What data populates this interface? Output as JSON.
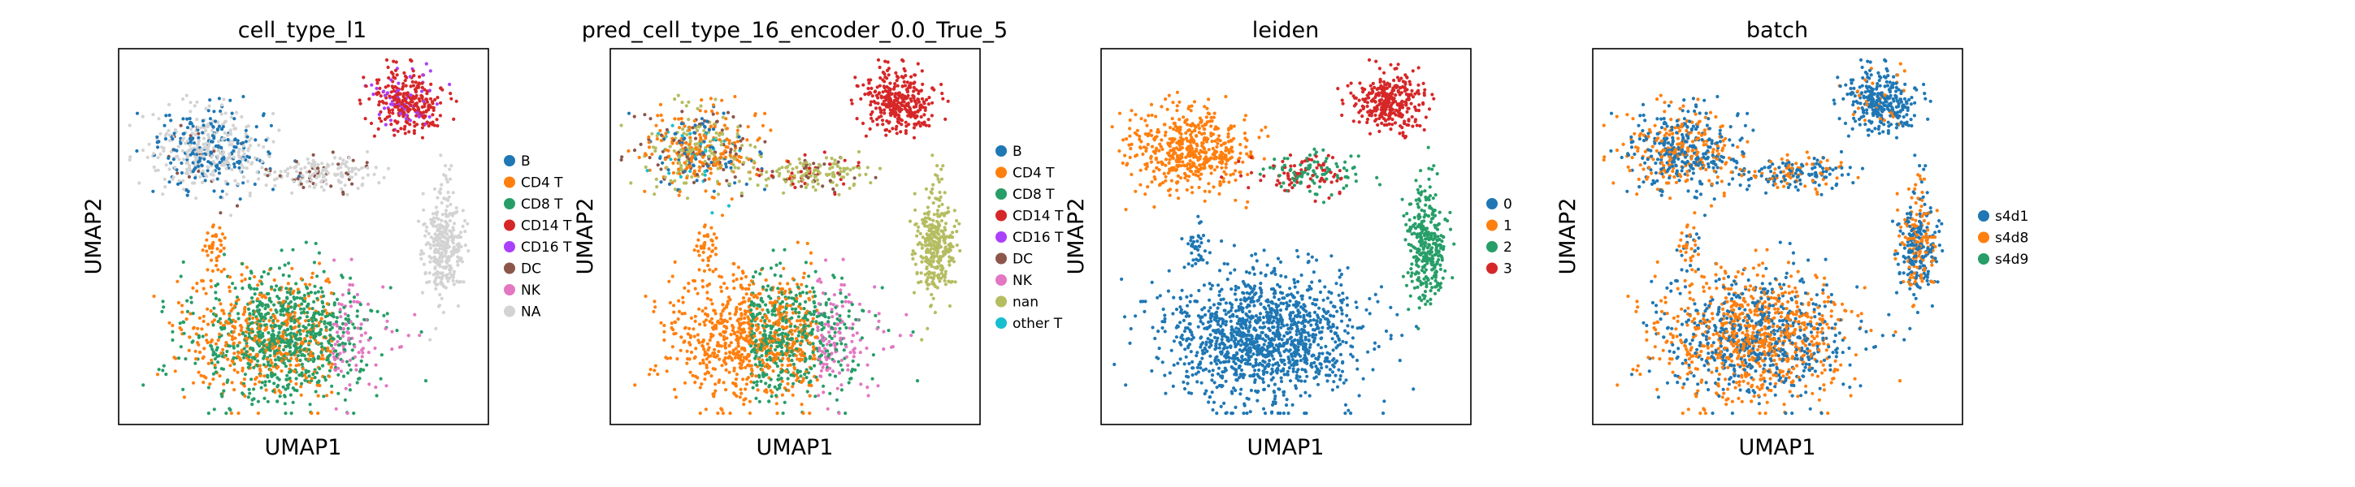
{
  "figure": {
    "panels": [
      {
        "title": "cell_type_l1",
        "xlabel": "UMAP1",
        "ylabel": "UMAP2"
      },
      {
        "title": "pred_cell_type_16_encoder_0.0_True_5",
        "xlabel": "UMAP1",
        "ylabel": "UMAP2"
      },
      {
        "title": "leiden",
        "xlabel": "UMAP1",
        "ylabel": "UMAP2"
      },
      {
        "title": "batch",
        "xlabel": "UMAP1",
        "ylabel": "UMAP2"
      }
    ]
  },
  "chart_data": [
    {
      "type": "scatter",
      "title": "cell_type_l1",
      "xlabel": "UMAP1",
      "ylabel": "UMAP2",
      "ticks": "none",
      "legend": "right",
      "series": [
        {
          "name": "B",
          "color": "#1f77b4"
        },
        {
          "name": "CD4 T",
          "color": "#ff7f0e"
        },
        {
          "name": "CD8 T",
          "color": "#279e68"
        },
        {
          "name": "CD14 T",
          "color": "#d62728"
        },
        {
          "name": "CD16 T",
          "color": "#aa40fc"
        },
        {
          "name": "DC",
          "color": "#8c564b"
        },
        {
          "name": "NK",
          "color": "#e377c2"
        },
        {
          "name": "NA",
          "color": "#d3d3d3"
        }
      ]
    },
    {
      "type": "scatter",
      "title": "pred_cell_type_16_encoder_0.0_True_5",
      "xlabel": "UMAP1",
      "ylabel": "UMAP2",
      "ticks": "none",
      "legend": "right",
      "series": [
        {
          "name": "B",
          "color": "#1f77b4"
        },
        {
          "name": "CD4 T",
          "color": "#ff7f0e"
        },
        {
          "name": "CD8 T",
          "color": "#279e68"
        },
        {
          "name": "CD14 T",
          "color": "#d62728"
        },
        {
          "name": "CD16 T",
          "color": "#aa40fc"
        },
        {
          "name": "DC",
          "color": "#8c564b"
        },
        {
          "name": "NK",
          "color": "#e377c2"
        },
        {
          "name": "nan",
          "color": "#b5bd61"
        },
        {
          "name": "other T",
          "color": "#17becf"
        }
      ]
    },
    {
      "type": "scatter",
      "title": "leiden",
      "xlabel": "UMAP1",
      "ylabel": "UMAP2",
      "ticks": "none",
      "legend": "right",
      "series": [
        {
          "name": "0",
          "color": "#1f77b4"
        },
        {
          "name": "1",
          "color": "#ff7f0e"
        },
        {
          "name": "2",
          "color": "#279e68"
        },
        {
          "name": "3",
          "color": "#d62728"
        }
      ]
    },
    {
      "type": "scatter",
      "title": "batch",
      "xlabel": "UMAP1",
      "ylabel": "UMAP2",
      "ticks": "none",
      "legend": "right",
      "series": [
        {
          "name": "s4d1",
          "color": "#1f77b4"
        },
        {
          "name": "s4d8",
          "color": "#ff7f0e"
        },
        {
          "name": "s4d9",
          "color": "#279e68"
        }
      ]
    }
  ]
}
